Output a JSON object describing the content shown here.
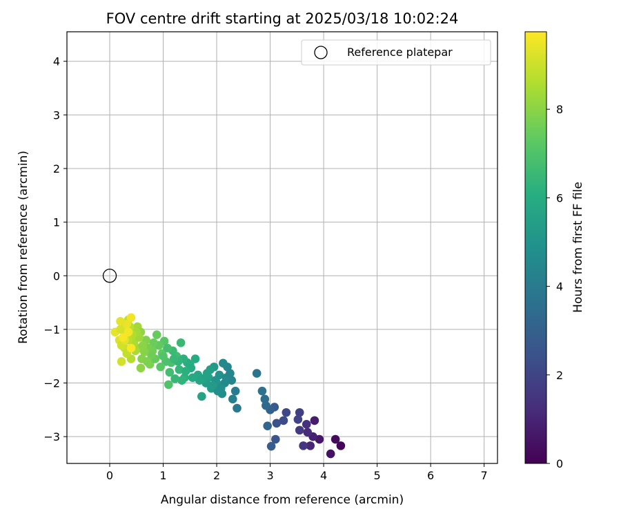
{
  "chart_data": {
    "type": "scatter",
    "title": "FOV centre drift starting at 2025/03/18 10:02:24",
    "xlabel": "Angular distance from reference (arcmin)",
    "ylabel": "Rotation from reference (arcmin)",
    "xlim": [
      -0.8,
      7.25
    ],
    "ylim": [
      -3.5,
      4.55
    ],
    "xticks": [
      0,
      1,
      2,
      3,
      4,
      5,
      6,
      7
    ],
    "yticks": [
      -3,
      -2,
      -1,
      0,
      1,
      2,
      3,
      4
    ],
    "xtick_labels": [
      "0",
      "1",
      "2",
      "3",
      "4",
      "5",
      "6",
      "7"
    ],
    "ytick_labels": [
      "−3",
      "−2",
      "−1",
      "0",
      "1",
      "2",
      "3",
      "4"
    ],
    "grid": true,
    "colormap": "viridis",
    "colorbar": {
      "label": "Hours from first FF file",
      "range": [
        0,
        9.75
      ],
      "ticks": [
        0,
        2,
        4,
        6,
        8
      ],
      "tick_labels": [
        "0",
        "2",
        "4",
        "6",
        "8"
      ]
    },
    "legend": {
      "position": "top-right",
      "entries": [
        {
          "label": "Reference platepar",
          "marker": "open-circle"
        }
      ]
    },
    "reference_point": {
      "x": 0,
      "y": 0
    },
    "series": [
      {
        "points": [
          [
            4.32,
            -3.17,
            0.15
          ],
          [
            4.22,
            -3.05,
            0.3
          ],
          [
            4.13,
            -3.32,
            0.45
          ],
          [
            3.92,
            -3.05,
            0.6
          ],
          [
            3.83,
            -2.7,
            0.75
          ],
          [
            3.8,
            -3.0,
            0.9
          ],
          [
            3.75,
            -3.17,
            1.05
          ],
          [
            3.7,
            -2.92,
            1.2
          ],
          [
            3.68,
            -2.77,
            1.35
          ],
          [
            3.62,
            -3.17,
            1.5
          ],
          [
            3.55,
            -2.88,
            1.65
          ],
          [
            3.55,
            -2.55,
            1.8
          ],
          [
            3.52,
            -2.68,
            1.95
          ],
          [
            3.3,
            -2.55,
            2.1
          ],
          [
            3.25,
            -2.7,
            2.25
          ],
          [
            3.12,
            -2.75,
            2.4
          ],
          [
            3.1,
            -3.05,
            2.55
          ],
          [
            3.08,
            -2.45,
            2.7
          ],
          [
            3.02,
            -3.18,
            2.85
          ],
          [
            3.0,
            -2.5,
            3.0
          ],
          [
            2.95,
            -2.8,
            3.15
          ],
          [
            2.92,
            -2.42,
            3.3
          ],
          [
            2.9,
            -2.3,
            3.45
          ],
          [
            2.85,
            -2.15,
            3.6
          ],
          [
            2.75,
            -1.82,
            3.75
          ],
          [
            2.38,
            -2.47,
            3.9
          ],
          [
            2.35,
            -2.15,
            4.05
          ],
          [
            2.3,
            -2.3,
            4.2
          ],
          [
            2.28,
            -1.95,
            4.35
          ],
          [
            2.2,
            -1.7,
            4.5
          ],
          [
            2.15,
            -2.0,
            4.6
          ],
          [
            2.1,
            -2.2,
            4.75
          ],
          [
            2.05,
            -1.85,
            4.9
          ],
          [
            2.0,
            -2.0,
            5.05
          ],
          [
            1.95,
            -1.7,
            5.2
          ],
          [
            1.9,
            -2.1,
            5.35
          ],
          [
            1.85,
            -1.9,
            5.5
          ],
          [
            1.72,
            -2.25,
            5.65
          ],
          [
            1.65,
            -1.85,
            5.8
          ],
          [
            1.6,
            -1.55,
            5.95
          ],
          [
            1.5,
            -1.65,
            6.1
          ],
          [
            1.4,
            -1.9,
            6.25
          ],
          [
            1.3,
            -1.75,
            6.4
          ],
          [
            1.33,
            -1.25,
            6.55
          ],
          [
            1.25,
            -1.5,
            6.7
          ],
          [
            1.15,
            -1.62,
            6.85
          ],
          [
            1.1,
            -2.03,
            7.0
          ],
          [
            1.02,
            -1.22,
            7.15
          ],
          [
            0.98,
            -1.45,
            7.3
          ],
          [
            0.88,
            -1.1,
            7.45
          ],
          [
            0.8,
            -1.4,
            7.6
          ],
          [
            0.75,
            -1.65,
            7.75
          ],
          [
            0.6,
            -1.55,
            7.9
          ],
          [
            0.58,
            -1.72,
            8.05
          ],
          [
            0.55,
            -1.35,
            8.2
          ],
          [
            0.52,
            -0.95,
            8.35
          ],
          [
            0.45,
            -1.25,
            8.5
          ],
          [
            0.4,
            -1.55,
            8.65
          ],
          [
            0.35,
            -0.82,
            8.8
          ],
          [
            0.28,
            -1.35,
            8.95
          ],
          [
            0.22,
            -1.6,
            9.1
          ],
          [
            0.18,
            -1.2,
            9.25
          ],
          [
            0.1,
            -1.05,
            9.4
          ],
          [
            0.3,
            -1.0,
            9.5
          ],
          [
            2.12,
            -1.63,
            4.55
          ],
          [
            2.18,
            -1.9,
            4.65
          ],
          [
            2.25,
            -1.82,
            4.45
          ],
          [
            2.02,
            -2.15,
            4.85
          ],
          [
            1.98,
            -1.95,
            5.0
          ],
          [
            2.08,
            -2.1,
            4.8
          ],
          [
            1.92,
            -2.05,
            5.3
          ],
          [
            1.88,
            -1.75,
            5.45
          ],
          [
            1.8,
            -2.0,
            5.4
          ],
          [
            1.82,
            -1.82,
            5.55
          ],
          [
            1.75,
            -1.92,
            5.6
          ],
          [
            1.68,
            -1.95,
            5.7
          ],
          [
            1.55,
            -1.9,
            5.9
          ],
          [
            1.52,
            -1.72,
            6.0
          ],
          [
            1.45,
            -1.62,
            6.05
          ],
          [
            1.42,
            -1.78,
            6.15
          ],
          [
            1.38,
            -1.55,
            6.2
          ],
          [
            1.35,
            -1.95,
            6.3
          ],
          [
            1.28,
            -1.6,
            6.35
          ],
          [
            1.22,
            -1.92,
            6.45
          ],
          [
            1.2,
            -1.55,
            6.5
          ],
          [
            1.18,
            -1.4,
            6.6
          ],
          [
            1.12,
            -1.8,
            6.75
          ],
          [
            1.08,
            -1.35,
            6.8
          ],
          [
            1.05,
            -1.6,
            6.9
          ],
          [
            1.0,
            -1.5,
            7.05
          ],
          [
            0.95,
            -1.7,
            7.2
          ],
          [
            0.92,
            -1.3,
            7.35
          ],
          [
            0.85,
            -1.55,
            7.4
          ],
          [
            0.82,
            -1.25,
            7.5
          ],
          [
            0.78,
            -1.48,
            7.55
          ],
          [
            0.72,
            -1.35,
            7.7
          ],
          [
            0.7,
            -1.6,
            7.8
          ],
          [
            0.68,
            -1.2,
            7.85
          ],
          [
            0.65,
            -1.42,
            7.95
          ],
          [
            0.62,
            -1.3,
            8.0
          ],
          [
            0.58,
            -1.05,
            8.1
          ],
          [
            0.55,
            -1.15,
            8.3
          ],
          [
            0.5,
            -1.05,
            8.4
          ],
          [
            0.48,
            -1.4,
            8.45
          ],
          [
            0.42,
            -1.1,
            8.6
          ],
          [
            0.38,
            -0.95,
            8.7
          ],
          [
            0.35,
            -1.2,
            8.75
          ],
          [
            0.32,
            -1.45,
            8.85
          ],
          [
            0.3,
            -1.1,
            8.9
          ],
          [
            0.25,
            -0.9,
            9.0
          ],
          [
            0.22,
            -1.3,
            9.05
          ],
          [
            0.2,
            -1.0,
            9.15
          ],
          [
            0.28,
            -1.2,
            9.3
          ],
          [
            0.32,
            -0.9,
            9.45
          ],
          [
            0.4,
            -0.78,
            9.55
          ],
          [
            0.35,
            -1.05,
            9.6
          ],
          [
            0.25,
            -1.15,
            9.65
          ],
          [
            0.4,
            -1.35,
            9.7
          ],
          [
            0.2,
            -0.85,
            9.35
          ]
        ]
      }
    ]
  }
}
